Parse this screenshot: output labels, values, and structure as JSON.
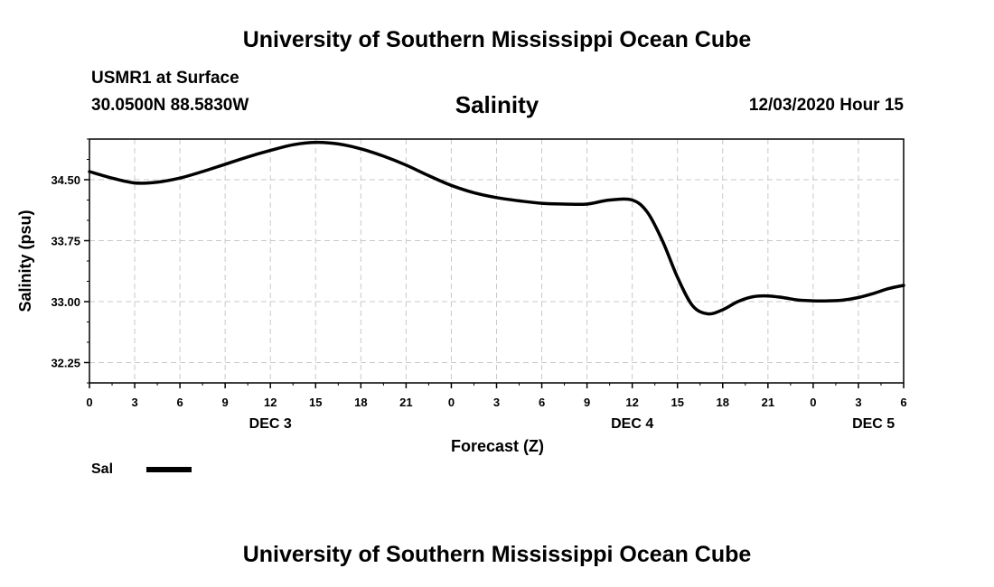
{
  "top_title": "University of Southern Mississippi Ocean Cube",
  "bottom_title": "University of Southern Mississippi Ocean Cube",
  "station": "USMR1 at Surface",
  "coords": "30.0500N 88.5830W",
  "plot_title": "Salinity",
  "issued": "12/03/2020 Hour 15",
  "legend": {
    "label": "Sal",
    "color": "#000000"
  },
  "chart_data": {
    "type": "line",
    "title": "Salinity",
    "xlabel": "Forecast (Z)",
    "ylabel": "Salinity (psu)",
    "ylim": [
      32.0,
      35.0
    ],
    "yticks": [
      "34.50",
      "33.75",
      "33.00",
      "32.25"
    ],
    "ytick_values": [
      34.5,
      33.75,
      33.0,
      32.25
    ],
    "xlim": [
      0,
      54
    ],
    "xtick_labels": [
      "0",
      "3",
      "6",
      "9",
      "12",
      "15",
      "18",
      "21",
      "0",
      "3",
      "6",
      "9",
      "12",
      "15",
      "18",
      "21",
      "0",
      "3",
      "6"
    ],
    "day_labels": [
      {
        "label": "DEC 3",
        "hour": 12
      },
      {
        "label": "DEC 4",
        "hour": 36
      },
      {
        "label": "DEC 5",
        "hour": 52
      }
    ],
    "grid": true,
    "series": [
      {
        "name": "Sal",
        "color": "#000000",
        "x": [
          0,
          1.5,
          3,
          4.5,
          6,
          7.5,
          9,
          10.5,
          12,
          13.5,
          15,
          16.5,
          18,
          19.5,
          21,
          22.5,
          24,
          25.5,
          27,
          28.5,
          30,
          31.5,
          33,
          34.5,
          36,
          37,
          38,
          39,
          40,
          41,
          42,
          43,
          44,
          45,
          46,
          47,
          48,
          49,
          50,
          51,
          52,
          53,
          54
        ],
        "y": [
          34.6,
          34.52,
          34.46,
          34.47,
          34.52,
          34.6,
          34.69,
          34.78,
          34.86,
          34.93,
          34.96,
          34.94,
          34.88,
          34.79,
          34.68,
          34.55,
          34.43,
          34.34,
          34.28,
          34.24,
          34.21,
          34.2,
          34.2,
          34.25,
          34.25,
          34.1,
          33.75,
          33.3,
          32.95,
          32.85,
          32.9,
          33.0,
          33.06,
          33.07,
          33.05,
          33.02,
          33.01,
          33.01,
          33.02,
          33.05,
          33.1,
          33.16,
          33.2
        ]
      }
    ]
  }
}
